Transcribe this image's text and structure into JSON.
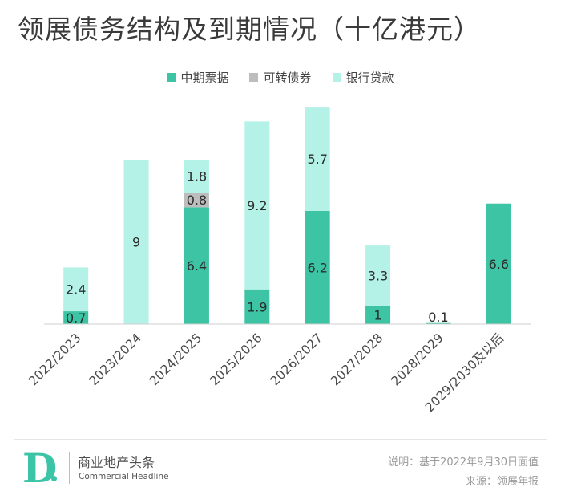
{
  "chart_data": {
    "type": "bar",
    "stacked": true,
    "title": "领展债务结构及到期情况（十亿港元）",
    "categories": [
      "2022/2023",
      "2023/2024",
      "2024/2025",
      "2025/2026",
      "2026/2027",
      "2027/2028",
      "2028/2029",
      "2029/2030及以后"
    ],
    "series": [
      {
        "name": "中期票据",
        "color": "#3dc4a5",
        "values": [
          0.7,
          0,
          6.4,
          1.9,
          6.2,
          1,
          0.1,
          6.6
        ]
      },
      {
        "name": "可转债券",
        "color": "#bdbdbd",
        "values": [
          0,
          0,
          0.8,
          0,
          0,
          0,
          0,
          0
        ]
      },
      {
        "name": "银行贷款",
        "color": "#b4f1e7",
        "values": [
          2.4,
          9,
          1.8,
          9.2,
          5.7,
          3.3,
          0,
          0
        ]
      }
    ],
    "ylim": [
      0,
      12.3
    ],
    "xlabel": "",
    "ylabel": "",
    "legend": "top-center"
  },
  "footer": {
    "brand_mark": "D.",
    "brand_cn": "商业地产头条",
    "brand_en": "Commercial Headline",
    "note_line1": "说明：基于2022年9月30日面值",
    "note_line2": "来源：领展年报"
  },
  "colors": {
    "mtn": "#3dc4a5",
    "convertible": "#bdbdbd",
    "bank_loan": "#b4f1e7"
  }
}
